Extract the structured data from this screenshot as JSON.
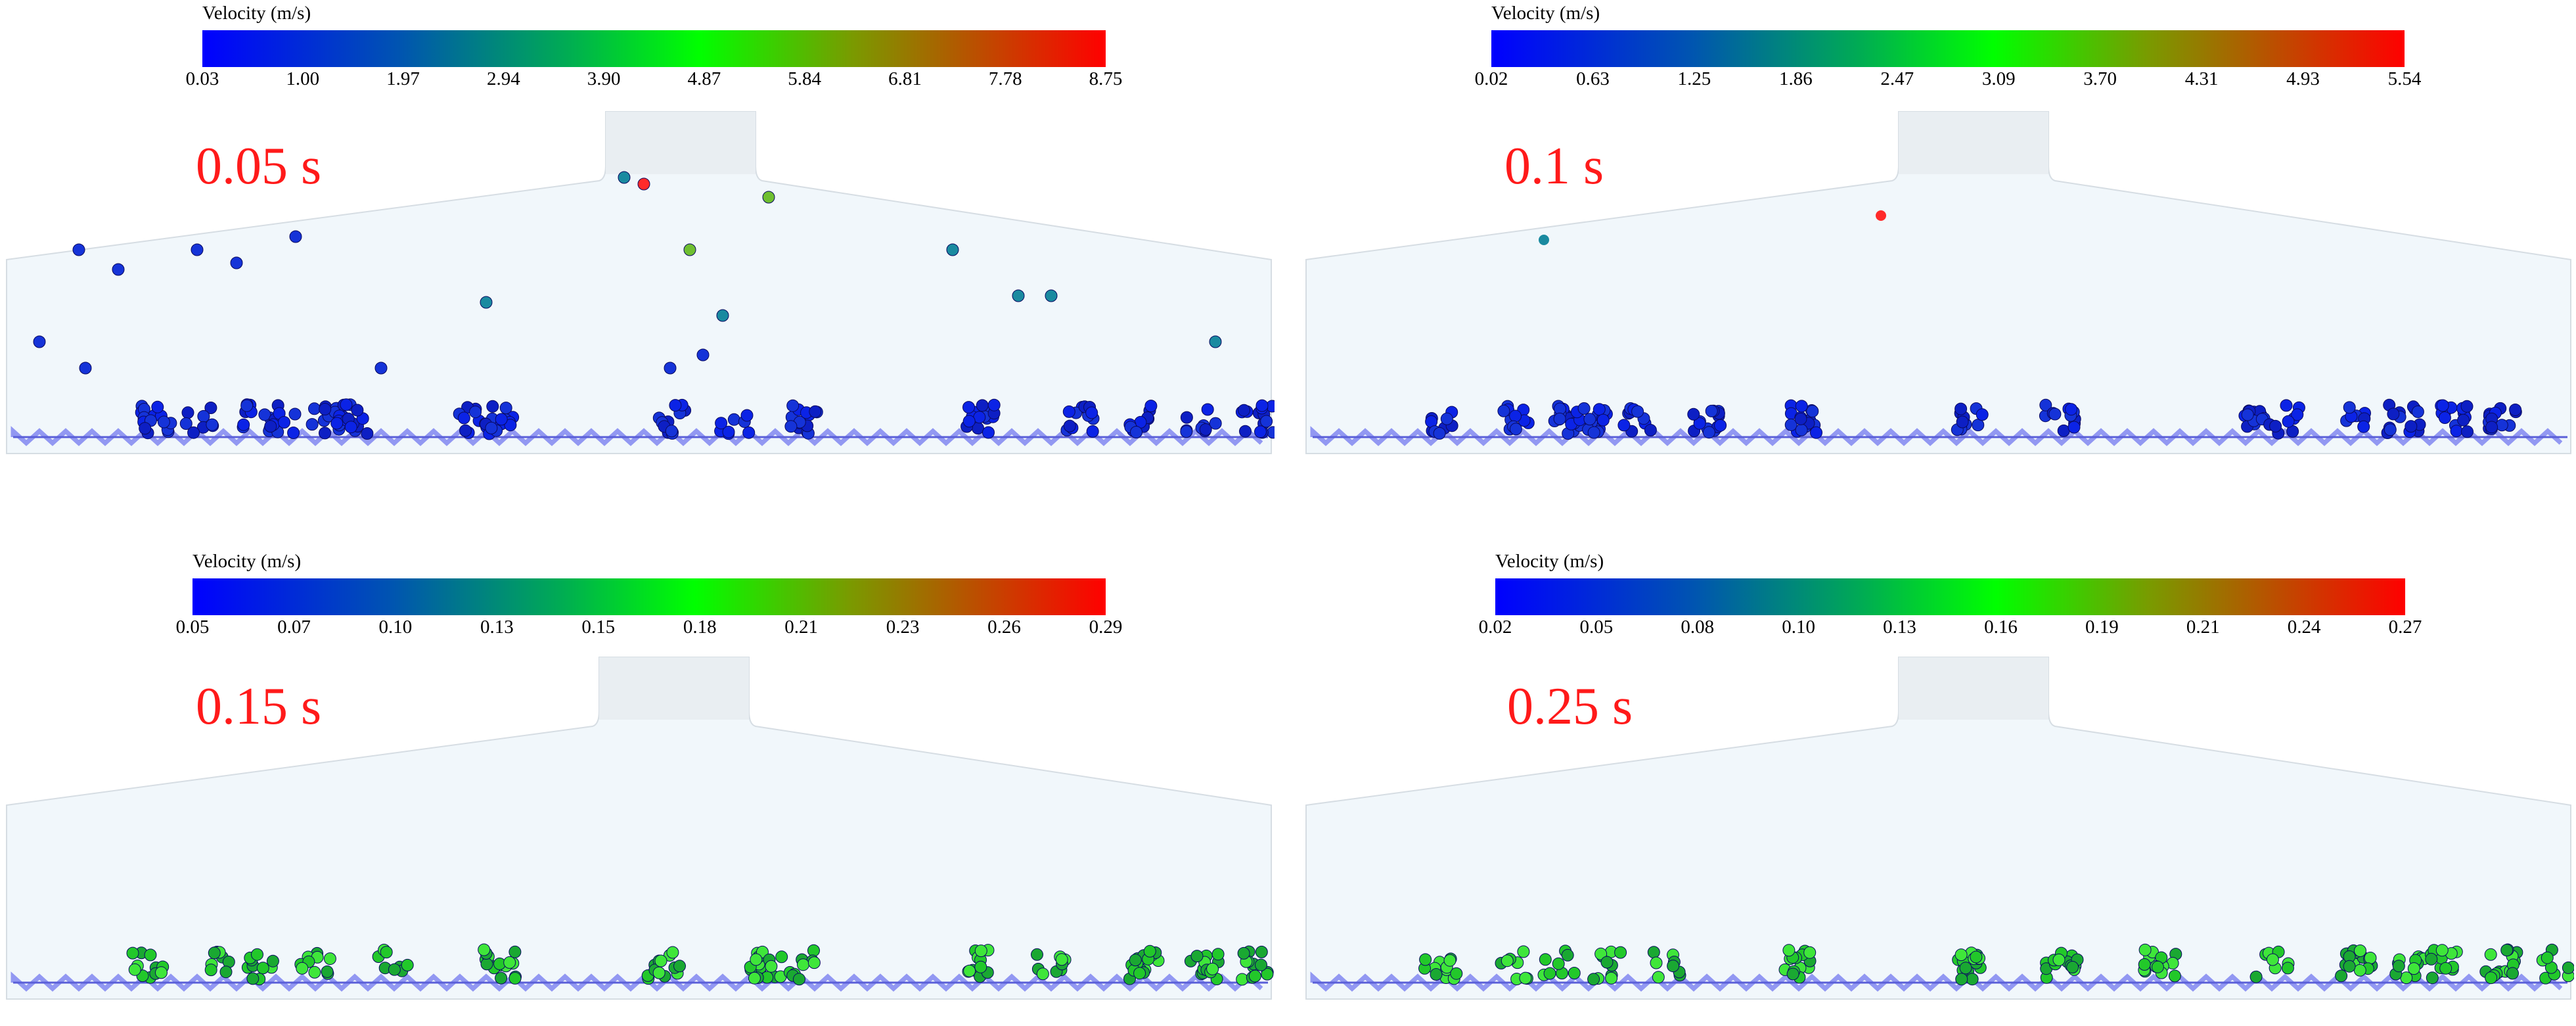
{
  "panels": [
    {
      "time_label": "0.05 s",
      "colorbar": {
        "title": "Velocity (m/s)",
        "ticks": [
          "0.03",
          "1.00",
          "1.97",
          "2.94",
          "3.90",
          "4.87",
          "5.84",
          "6.81",
          "7.78",
          "8.75"
        ]
      },
      "colors": {
        "low": "#0000ff",
        "high": "#ff0000"
      }
    },
    {
      "time_label": "0.1 s",
      "colorbar": {
        "title": "Velocity (m/s)",
        "ticks": [
          "0.02",
          "0.63",
          "1.25",
          "1.86",
          "2.47",
          "3.09",
          "3.70",
          "4.31",
          "4.93",
          "5.54"
        ]
      },
      "colors": {
        "low": "#0000ff",
        "high": "#ff0000"
      }
    },
    {
      "time_label": "0.15 s",
      "colorbar": {
        "title": "Velocity (m/s)",
        "ticks": [
          "0.05",
          "0.07",
          "0.10",
          "0.13",
          "0.15",
          "0.18",
          "0.21",
          "0.23",
          "0.26",
          "0.29"
        ]
      },
      "colors": {
        "low": "#0000ff",
        "high": "#ff0000"
      }
    },
    {
      "time_label": "0.25 s",
      "colorbar": {
        "title": "Velocity (m/s)",
        "ticks": [
          "0.02",
          "0.05",
          "0.08",
          "0.10",
          "0.13",
          "0.16",
          "0.19",
          "0.21",
          "0.24",
          "0.27"
        ]
      },
      "colors": {
        "low": "#0000ff",
        "high": "#ff0000"
      }
    }
  ]
}
